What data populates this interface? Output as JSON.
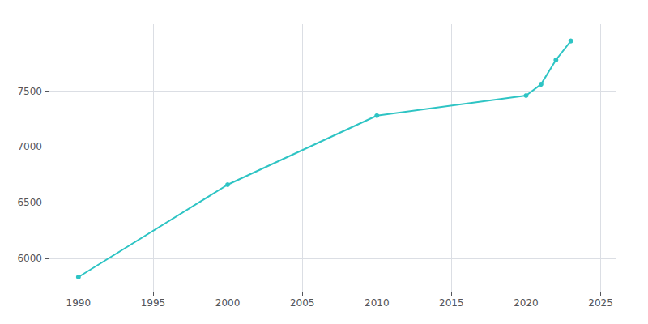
{
  "chart_data": {
    "type": "line",
    "x": [
      1990,
      2000,
      2010,
      2020,
      2021,
      2022,
      2023
    ],
    "values": [
      5831,
      6660,
      7280,
      7460,
      7561,
      7780,
      7950
    ],
    "color": "#2ec4c4",
    "marker": "circle",
    "xlim": [
      1988,
      2026
    ],
    "xticks": [
      1990,
      1995,
      2000,
      2005,
      2010,
      2015,
      2020,
      2025
    ],
    "ylim": [
      5700,
      8100
    ],
    "yticks": [
      6000,
      6500,
      7000,
      7500
    ],
    "grid": true
  }
}
